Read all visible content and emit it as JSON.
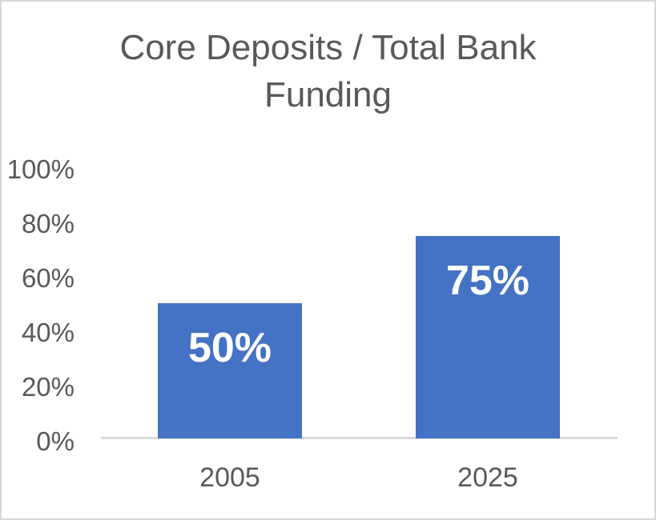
{
  "chart_data": {
    "type": "bar",
    "title": "Core Deposits / Total Bank Funding",
    "categories": [
      "2005",
      "2025"
    ],
    "values": [
      50,
      75
    ],
    "data_labels": [
      "50%",
      "75%"
    ],
    "ytick_labels": [
      "100%",
      "80%",
      "60%",
      "40%",
      "20%",
      "0%"
    ],
    "ylim": [
      0,
      100
    ],
    "xlabel": "",
    "ylabel": "",
    "grid": false,
    "legend": false,
    "bar_color": "#4472C4",
    "data_label_color": "#FFFFFF",
    "text_color": "#595959",
    "axis_line_color": "#D9D9D9",
    "border_color": "#D6D6D6"
  }
}
